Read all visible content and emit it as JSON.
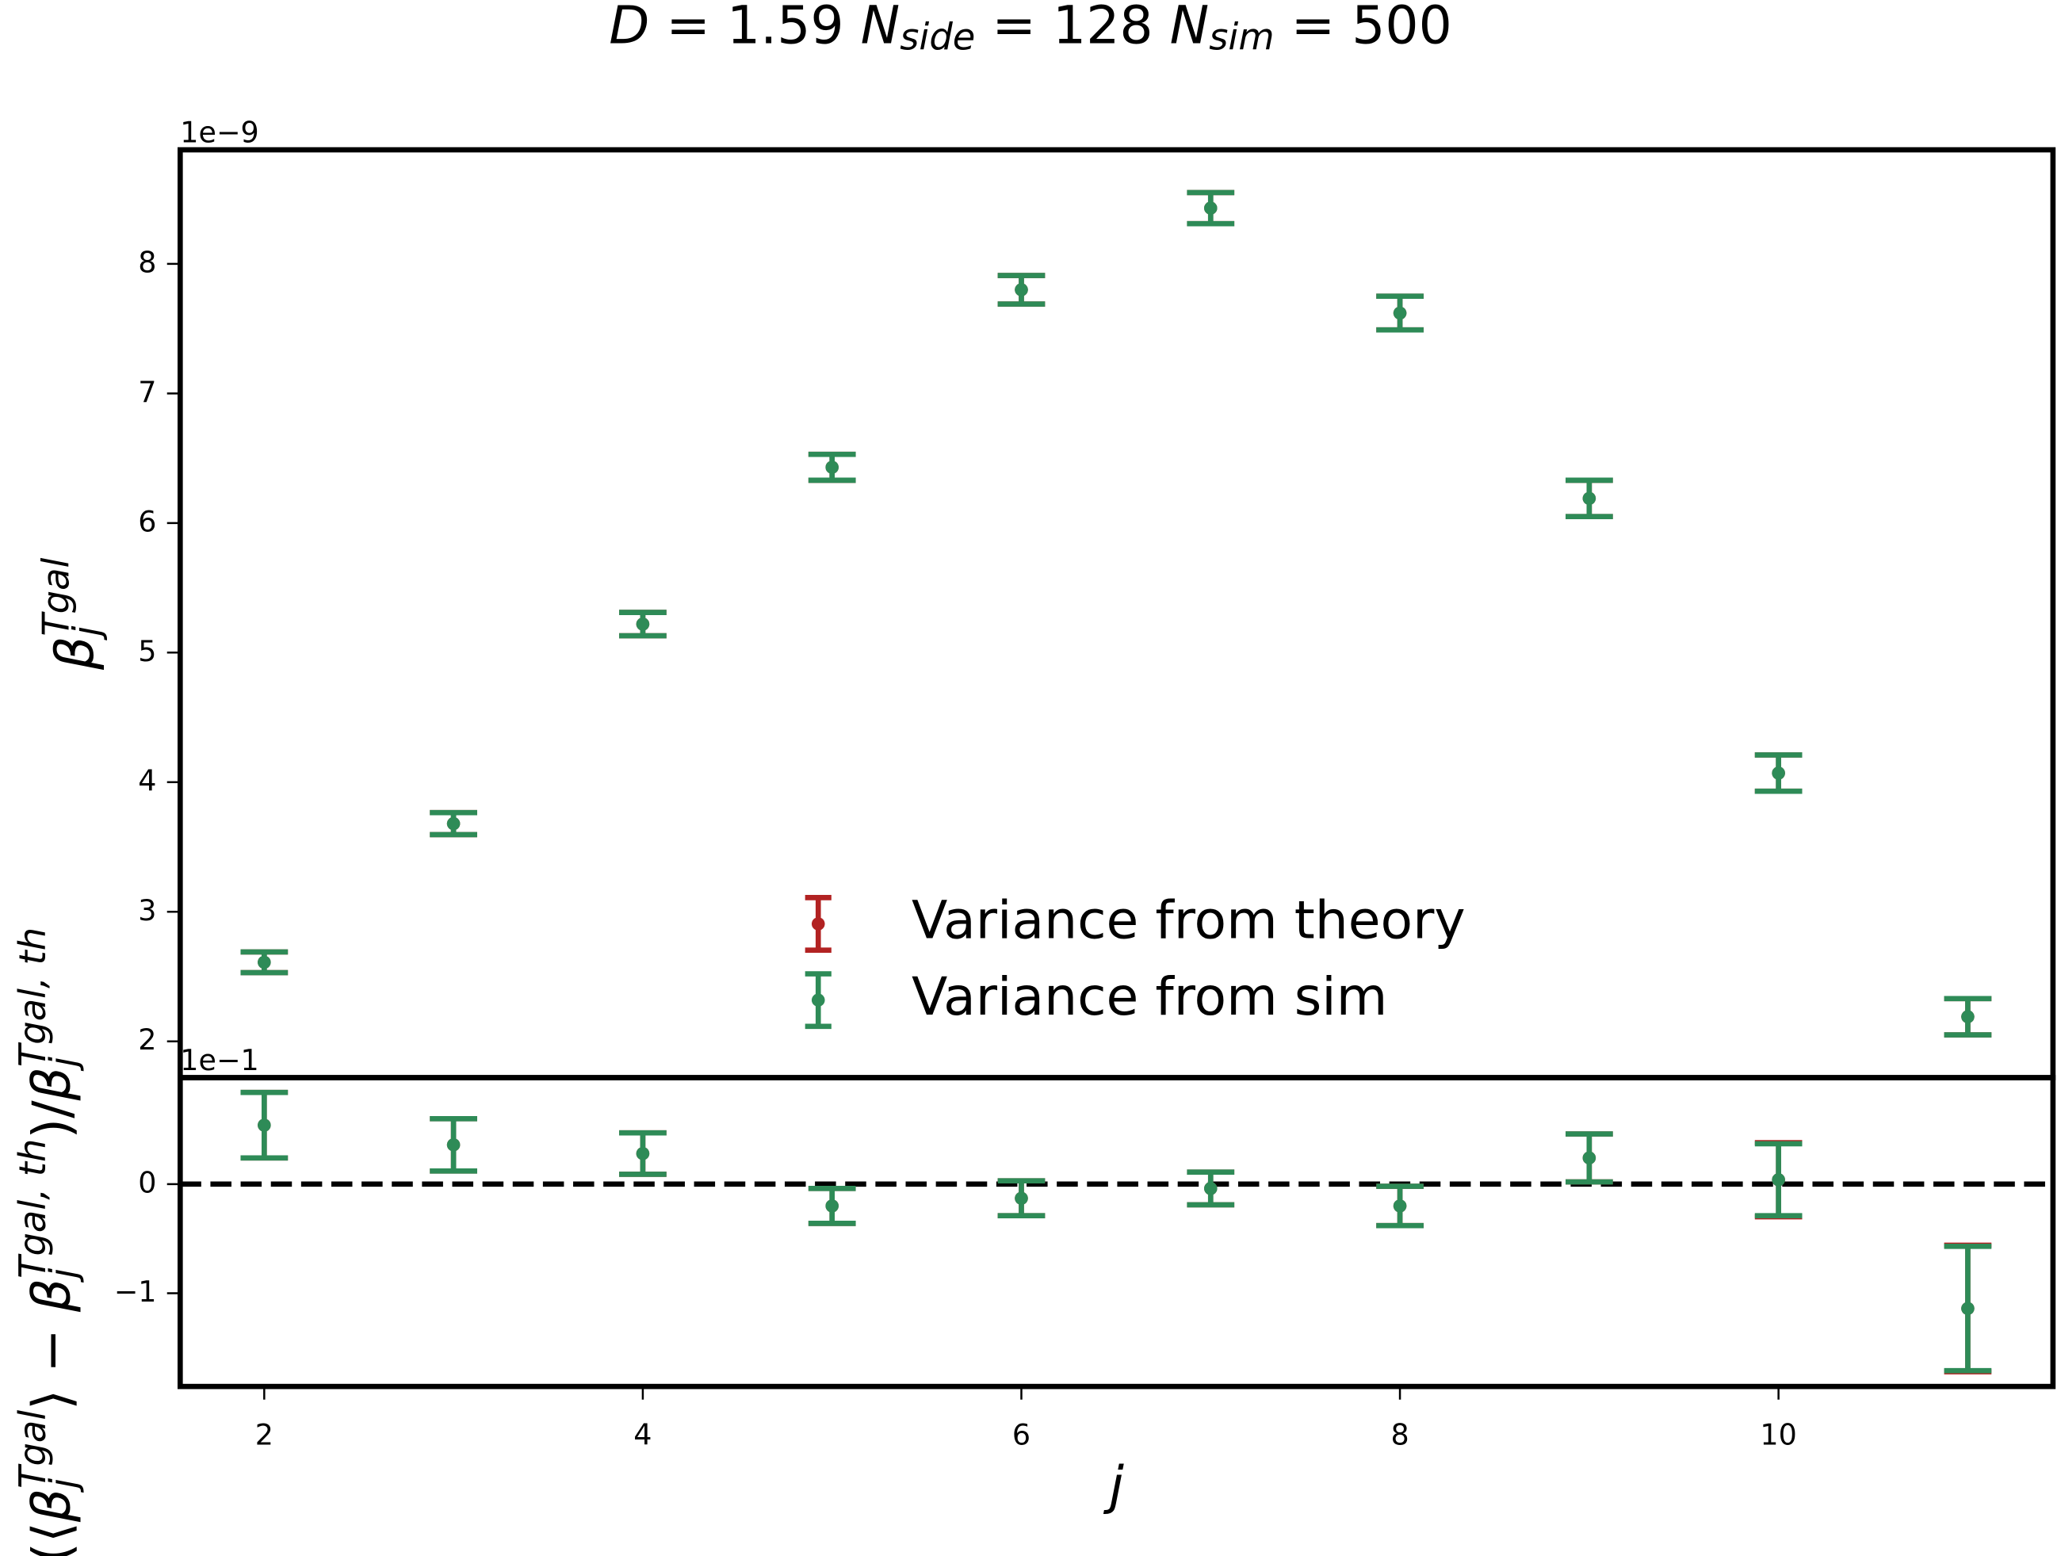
{
  "chart_data": [
    {
      "type": "errorbar",
      "title_parts": [
        {
          "text": "D",
          "style": "italic"
        },
        {
          "text": " = 1.59 ",
          "style": "normal"
        },
        {
          "text": "N",
          "style": "italic"
        },
        {
          "text": "side",
          "style": "sub"
        },
        {
          "text": " = 128 ",
          "style": "normal"
        },
        {
          "text": "N",
          "style": "italic"
        },
        {
          "text": "sim",
          "style": "sub"
        },
        {
          "text": " = 500",
          "style": "normal"
        }
      ],
      "ylabel_parts": [
        {
          "text": "β",
          "style": "italic"
        },
        {
          "text": "j",
          "style": "sub"
        },
        {
          "text": "Tgal",
          "style": "sup"
        }
      ],
      "offset_label": "1e−9",
      "x": [
        2,
        3,
        4,
        5,
        6,
        7,
        8,
        9,
        10,
        11
      ],
      "xlim": [
        1.556,
        11.45
      ],
      "ylim": [
        1.72,
        8.88
      ],
      "yticks": [
        2,
        3,
        4,
        5,
        6,
        7,
        8
      ],
      "legend": "lower center",
      "series": [
        {
          "name": "Variance from theory",
          "color": "#b22222",
          "values": [
            2.61,
            3.68,
            5.22,
            6.43,
            7.8,
            8.43,
            7.62,
            6.19,
            4.07,
            2.19
          ],
          "errors": [
            0.08,
            0.085,
            0.09,
            0.1,
            0.11,
            0.12,
            0.13,
            0.14,
            0.14,
            0.14
          ]
        },
        {
          "name": "Variance from sim",
          "color": "#2e8b57",
          "values": [
            2.61,
            3.68,
            5.22,
            6.43,
            7.8,
            8.43,
            7.62,
            6.19,
            4.07,
            2.19
          ],
          "errors": [
            0.08,
            0.085,
            0.09,
            0.1,
            0.11,
            0.12,
            0.13,
            0.14,
            0.14,
            0.14
          ]
        }
      ]
    },
    {
      "type": "errorbar",
      "ylabel_parts": [
        {
          "text": "(⟨",
          "style": "normal"
        },
        {
          "text": "β",
          "style": "italic"
        },
        {
          "text": "j",
          "style": "sub"
        },
        {
          "text": "Tgal",
          "style": "sup"
        },
        {
          "text": "⟩ − ",
          "style": "normal"
        },
        {
          "text": "β",
          "style": "italic"
        },
        {
          "text": "j",
          "style": "sub"
        },
        {
          "text": "Tgal, th",
          "style": "sup"
        },
        {
          "text": ")/",
          "style": "normal"
        },
        {
          "text": "β",
          "style": "italic"
        },
        {
          "text": "j",
          "style": "sub"
        },
        {
          "text": "Tgal, th",
          "style": "sup"
        }
      ],
      "xlabel": "j",
      "offset_label": "1e−1",
      "x": [
        2,
        3,
        4,
        5,
        6,
        7,
        8,
        9,
        10,
        11
      ],
      "xlim": [
        1.556,
        11.45
      ],
      "ylim": [
        -1.855,
        0.976
      ],
      "xticks": [
        2,
        4,
        6,
        8,
        10
      ],
      "yticks": [
        {
          "value": -1,
          "label": "−1"
        },
        0
      ],
      "reference_line": 0,
      "series": [
        {
          "color": "#b22222",
          "values": [
            0.54,
            0.36,
            0.28,
            -0.2,
            -0.13,
            -0.04,
            -0.2,
            0.24,
            0.04,
            -1.14
          ],
          "errors": [
            0.3,
            0.24,
            0.19,
            0.16,
            0.16,
            0.15,
            0.18,
            0.22,
            0.34,
            0.58
          ]
        },
        {
          "color": "#2e8b57",
          "values": [
            0.54,
            0.36,
            0.28,
            -0.2,
            -0.13,
            -0.04,
            -0.2,
            0.24,
            0.04,
            -1.14
          ],
          "errors": [
            0.3,
            0.24,
            0.19,
            0.16,
            0.16,
            0.15,
            0.18,
            0.22,
            0.33,
            0.57
          ]
        }
      ]
    }
  ]
}
